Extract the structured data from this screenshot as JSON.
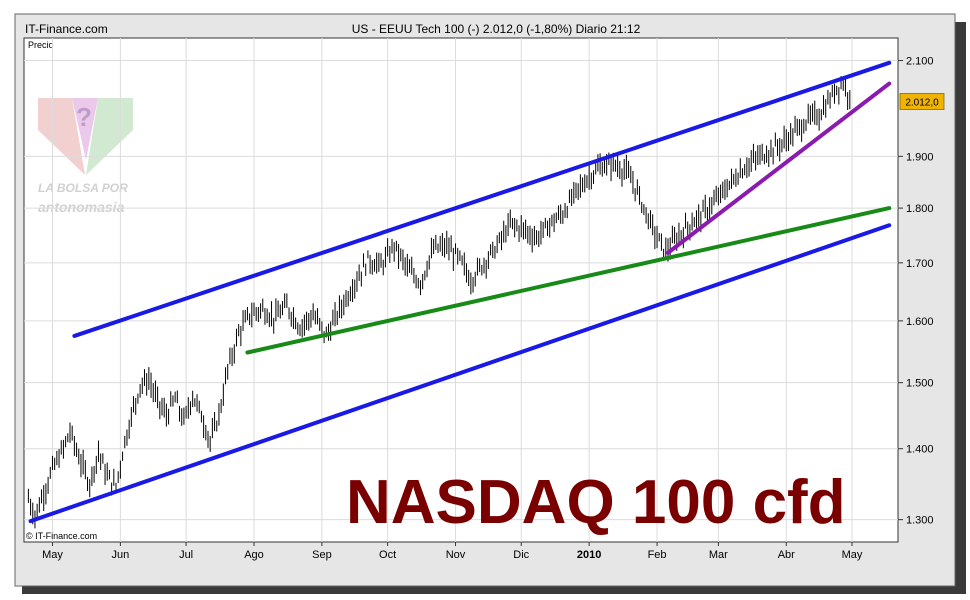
{
  "header": {
    "site": "IT-Finance.com",
    "title": "US - EEUU Tech 100 (-)   2.012,0 (-1,80%)   Diario  21:12"
  },
  "panel_label": "Precio",
  "copyright": "© IT-Finance.com",
  "overlay_title": "NASDAQ 100 cfd",
  "logo": {
    "line1": "LA BOLSA POR",
    "line2": "antonomasia"
  },
  "price_tag": "2.012,0",
  "colors": {
    "channel": "#1a1ae6",
    "support": "#178a17",
    "trend": "#8a1ab0",
    "overlay": "#7a0000",
    "price_tag_bg": "#f0b400"
  },
  "chart_data": {
    "type": "line",
    "title": "US - EEUU Tech 100 (-)",
    "ylabel": "Precio",
    "y_scale": "log",
    "ylim": [
      1270,
      2150
    ],
    "y_ticks": [
      {
        "value": 1300,
        "label": "1.300"
      },
      {
        "value": 1400,
        "label": "1.400"
      },
      {
        "value": 1500,
        "label": "1.500"
      },
      {
        "value": 1600,
        "label": "1.600"
      },
      {
        "value": 1700,
        "label": "1.700"
      },
      {
        "value": 1800,
        "label": "1.800"
      },
      {
        "value": 1900,
        "label": "1.900"
      },
      {
        "value": 2100,
        "label": "2.100"
      }
    ],
    "x_ticks": [
      {
        "date": "2009-05-01",
        "label": "May"
      },
      {
        "date": "2009-06-01",
        "label": "Jun"
      },
      {
        "date": "2009-07-01",
        "label": "Jul"
      },
      {
        "date": "2009-08-01",
        "label": "Ago"
      },
      {
        "date": "2009-09-01",
        "label": "Sep"
      },
      {
        "date": "2009-10-01",
        "label": "Oct"
      },
      {
        "date": "2009-11-01",
        "label": "Nov"
      },
      {
        "date": "2009-12-01",
        "label": "Dic"
      },
      {
        "date": "2010-01-01",
        "label": "2010"
      },
      {
        "date": "2010-02-01",
        "label": "Feb"
      },
      {
        "date": "2010-03-01",
        "label": "Mar"
      },
      {
        "date": "2010-04-01",
        "label": "Abr"
      },
      {
        "date": "2010-05-01",
        "label": "May"
      }
    ],
    "last_value": 2012.0,
    "change_pct": -1.8,
    "series": [
      {
        "name": "US - EEUU Tech 100",
        "points": [
          [
            "2009-04-20",
            1330
          ],
          [
            "2009-04-23",
            1305
          ],
          [
            "2009-04-28",
            1345
          ],
          [
            "2009-05-01",
            1370
          ],
          [
            "2009-05-06",
            1400
          ],
          [
            "2009-05-09",
            1425
          ],
          [
            "2009-05-14",
            1380
          ],
          [
            "2009-05-18",
            1350
          ],
          [
            "2009-05-22",
            1395
          ],
          [
            "2009-05-26",
            1360
          ],
          [
            "2009-05-30",
            1345
          ],
          [
            "2009-06-03",
            1410
          ],
          [
            "2009-06-07",
            1460
          ],
          [
            "2009-06-10",
            1495
          ],
          [
            "2009-06-14",
            1505
          ],
          [
            "2009-06-18",
            1470
          ],
          [
            "2009-06-22",
            1450
          ],
          [
            "2009-06-26",
            1475
          ],
          [
            "2009-06-30",
            1440
          ],
          [
            "2009-07-04",
            1480
          ],
          [
            "2009-07-08",
            1450
          ],
          [
            "2009-07-12",
            1410
          ],
          [
            "2009-07-16",
            1450
          ],
          [
            "2009-07-20",
            1520
          ],
          [
            "2009-07-25",
            1580
          ],
          [
            "2009-07-30",
            1610
          ],
          [
            "2009-08-05",
            1620
          ],
          [
            "2009-08-10",
            1605
          ],
          [
            "2009-08-16",
            1625
          ],
          [
            "2009-08-22",
            1590
          ],
          [
            "2009-08-28",
            1610
          ],
          [
            "2009-09-03",
            1575
          ],
          [
            "2009-09-10",
            1625
          ],
          [
            "2009-09-16",
            1665
          ],
          [
            "2009-09-22",
            1705
          ],
          [
            "2009-09-28",
            1695
          ],
          [
            "2009-10-04",
            1730
          ],
          [
            "2009-10-10",
            1690
          ],
          [
            "2009-10-16",
            1665
          ],
          [
            "2009-10-22",
            1725
          ],
          [
            "2009-10-28",
            1730
          ],
          [
            "2009-11-03",
            1705
          ],
          [
            "2009-11-08",
            1670
          ],
          [
            "2009-11-14",
            1700
          ],
          [
            "2009-11-20",
            1730
          ],
          [
            "2009-11-26",
            1770
          ],
          [
            "2009-12-02",
            1760
          ],
          [
            "2009-12-08",
            1745
          ],
          [
            "2009-12-14",
            1770
          ],
          [
            "2009-12-20",
            1790
          ],
          [
            "2009-12-26",
            1830
          ],
          [
            "2010-01-01",
            1860
          ],
          [
            "2010-01-06",
            1880
          ],
          [
            "2010-01-12",
            1885
          ],
          [
            "2010-01-18",
            1870
          ],
          [
            "2010-01-22",
            1840
          ],
          [
            "2010-01-27",
            1790
          ],
          [
            "2010-02-01",
            1745
          ],
          [
            "2010-02-05",
            1720
          ],
          [
            "2010-02-10",
            1745
          ],
          [
            "2010-02-16",
            1770
          ],
          [
            "2010-02-22",
            1790
          ],
          [
            "2010-02-28",
            1815
          ],
          [
            "2010-03-06",
            1845
          ],
          [
            "2010-03-12",
            1875
          ],
          [
            "2010-03-18",
            1895
          ],
          [
            "2010-03-24",
            1910
          ],
          [
            "2010-03-30",
            1925
          ],
          [
            "2010-04-05",
            1950
          ],
          [
            "2010-04-11",
            1975
          ],
          [
            "2010-04-16",
            1985
          ],
          [
            "2010-04-20",
            2010
          ],
          [
            "2010-04-24",
            2040
          ],
          [
            "2010-04-27",
            2055
          ],
          [
            "2010-04-30",
            2012
          ]
        ]
      }
    ],
    "trendlines": [
      {
        "name": "upper-channel",
        "color": "channel",
        "start": [
          "2009-05-11",
          1575
        ],
        "end": [
          "2010-05-18",
          2095
        ]
      },
      {
        "name": "lower-channel",
        "color": "channel",
        "start": [
          "2009-04-21",
          1298
        ],
        "end": [
          "2010-05-18",
          1768
        ]
      },
      {
        "name": "support",
        "color": "support",
        "start": [
          "2009-07-29",
          1548
        ],
        "end": [
          "2010-05-18",
          1800
        ]
      },
      {
        "name": "trend",
        "color": "trend",
        "start": [
          "2010-02-06",
          1718
        ],
        "end": [
          "2010-05-18",
          2050
        ]
      }
    ]
  }
}
